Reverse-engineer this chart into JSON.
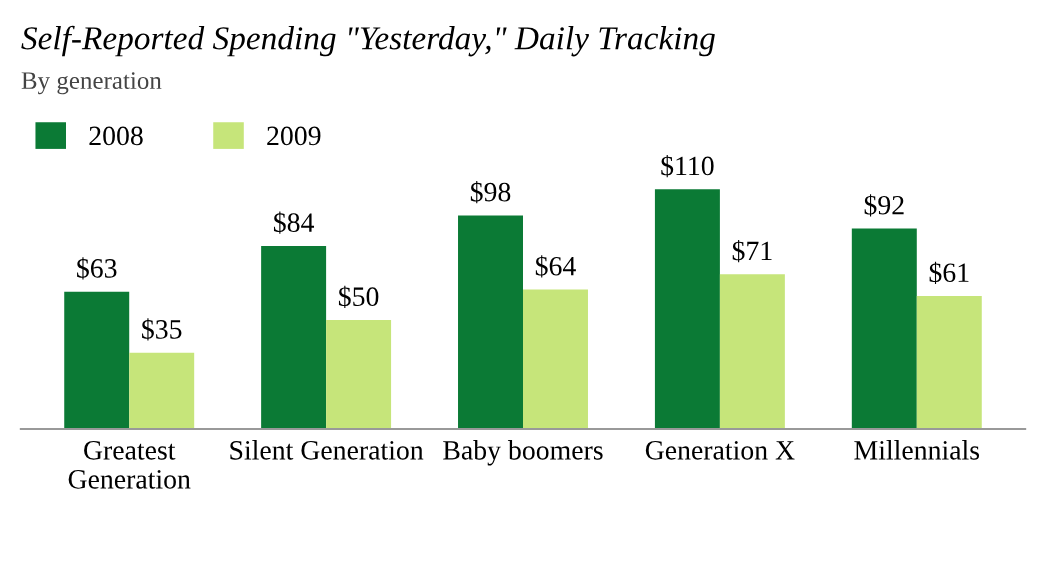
{
  "chart_data": {
    "type": "bar",
    "title": "Self-Reported Spending \"Yesterday,\" Daily Tracking",
    "subtitle": "By generation",
    "categories": [
      "Greatest\nGeneration",
      "Silent Generation",
      "Baby boomers",
      "Generation X",
      "Millennials"
    ],
    "series": [
      {
        "name": "2008",
        "color": "#0b7a35",
        "values": [
          63,
          84,
          98,
          110,
          92
        ],
        "value_labels": [
          "$63",
          "$84",
          "$98",
          "$110",
          "$92"
        ]
      },
      {
        "name": "2009",
        "color": "#c6e57a",
        "values": [
          35,
          50,
          64,
          71,
          61
        ],
        "value_labels": [
          "$35",
          "$50",
          "$64",
          "$71",
          "$61"
        ]
      }
    ],
    "legend": "top left",
    "grid": false
  }
}
